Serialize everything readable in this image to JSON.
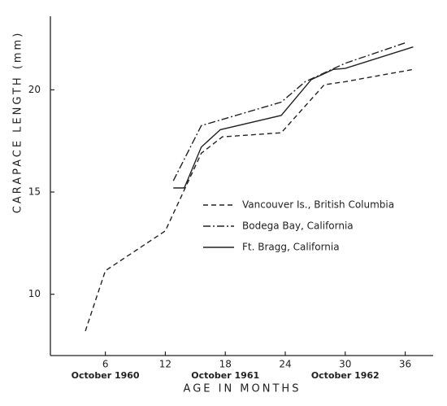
{
  "chart_data": {
    "type": "line",
    "xlabel": "AGE IN MONTHS",
    "ylabel": "CARAPACE LENGTH (mm)",
    "xlim": [
      0.5,
      38.8
    ],
    "ylim": [
      7,
      23.6
    ],
    "xticks": [
      6,
      12,
      18,
      24,
      30,
      36
    ],
    "yticks": [
      10,
      15,
      20
    ],
    "grid": false,
    "legend": "right",
    "annotations": [
      {
        "text": "October 1960",
        "x": 6
      },
      {
        "text": "October 1961",
        "x": 18
      },
      {
        "text": "October 1962",
        "x": 30
      }
    ],
    "series": [
      {
        "name": "Vancouver Is., British Columbia",
        "color": "#222222",
        "dash": "dashed",
        "x": [
          4,
          6,
          12,
          15.6,
          17.7,
          23.6,
          27.9,
          30,
          36.8
        ],
        "values": [
          8.2,
          11.15,
          13.1,
          16.9,
          17.7,
          17.9,
          20.25,
          20.4,
          21.0
        ]
      },
      {
        "name": "Bodega Bay, California",
        "color": "#222222",
        "dash": "dashdot",
        "x": [
          12.8,
          15.6,
          23.6,
          26,
          30,
          36
        ],
        "values": [
          15.55,
          18.25,
          19.4,
          20.4,
          21.3,
          22.3
        ]
      },
      {
        "name": "Ft. Bragg, California",
        "color": "#222222",
        "dash": "solid",
        "x": [
          12.8,
          13.9,
          15.6,
          17.5,
          23.6,
          26.6,
          28.8,
          30,
          36.8
        ],
        "values": [
          15.2,
          15.2,
          17.2,
          18.05,
          18.75,
          20.5,
          21.0,
          21.05,
          22.1
        ]
      }
    ]
  }
}
